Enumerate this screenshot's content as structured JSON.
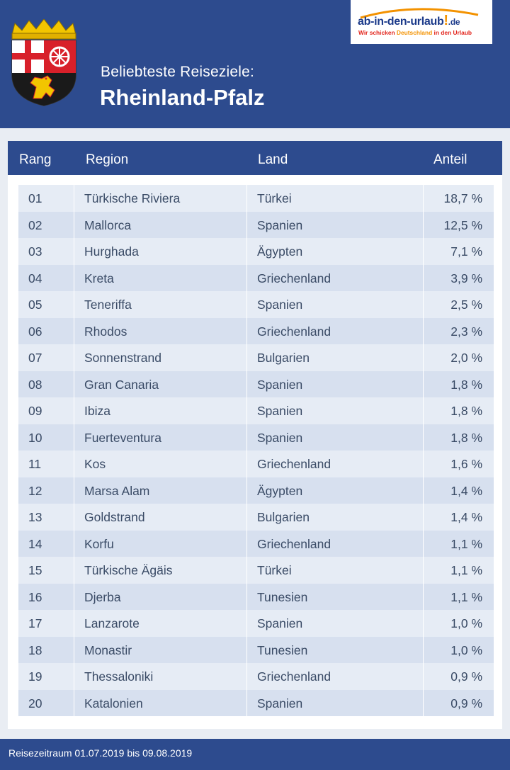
{
  "header": {
    "subtitle": "Beliebteste Reiseziele:",
    "title": "Rheinland-Pfalz",
    "crest_icon": "rheinland-pfalz-coat-of-arms-icon",
    "logo": {
      "main": "ab-in-den-urlaub",
      "excl": "!",
      "suffix": ".de",
      "tag_before": "Wir schicken ",
      "tag_highlight": "Deutschland",
      "tag_after": " in den Urlaub"
    }
  },
  "colors": {
    "header_blue": "#2d4b8e",
    "row_light": "#e6ecf5",
    "row_dark": "#d7e0ef",
    "text": "#3a4b66",
    "logo_blue": "#1b3a8a",
    "logo_orange": "#f39200",
    "logo_red": "#e2231a"
  },
  "chart_data": {
    "type": "table",
    "title": "Rheinland-Pfalz",
    "subtitle": "Beliebteste Reiseziele:",
    "columns": [
      "Rang",
      "Region",
      "Land",
      "Anteil"
    ],
    "rows": [
      [
        "01",
        "Türkische Riviera",
        "Türkei",
        "18,7 %"
      ],
      [
        "02",
        "Mallorca",
        "Spanien",
        "12,5 %"
      ],
      [
        "03",
        "Hurghada",
        "Ägypten",
        "7,1 %"
      ],
      [
        "04",
        "Kreta",
        "Griechenland",
        "3,9 %"
      ],
      [
        "05",
        "Teneriffa",
        "Spanien",
        "2,5 %"
      ],
      [
        "06",
        "Rhodos",
        "Griechenland",
        "2,3 %"
      ],
      [
        "07",
        "Sonnenstrand",
        "Bulgarien",
        "2,0 %"
      ],
      [
        "08",
        "Gran Canaria",
        "Spanien",
        "1,8 %"
      ],
      [
        "09",
        "Ibiza",
        "Spanien",
        "1,8 %"
      ],
      [
        "10",
        "Fuerteventura",
        "Spanien",
        "1,8 %"
      ],
      [
        "11",
        "Kos",
        "Griechenland",
        "1,6 %"
      ],
      [
        "12",
        "Marsa Alam",
        "Ägypten",
        "1,4 %"
      ],
      [
        "13",
        "Goldstrand",
        "Bulgarien",
        "1,4 %"
      ],
      [
        "14",
        "Korfu",
        "Griechenland",
        "1,1 %"
      ],
      [
        "15",
        "Türkische Ägäis",
        "Türkei",
        "1,1 %"
      ],
      [
        "16",
        "Djerba",
        "Tunesien",
        "1,1 %"
      ],
      [
        "17",
        "Lanzarote",
        "Spanien",
        "1,0 %"
      ],
      [
        "18",
        "Monastir",
        "Tunesien",
        "1,0 %"
      ],
      [
        "19",
        "Thessaloniki",
        "Griechenland",
        "0,9 %"
      ],
      [
        "20",
        "Katalonien",
        "Spanien",
        "0,9 %"
      ]
    ]
  },
  "footer": {
    "note": "Reisezeitraum 01.07.2019 bis 09.08.2019"
  }
}
